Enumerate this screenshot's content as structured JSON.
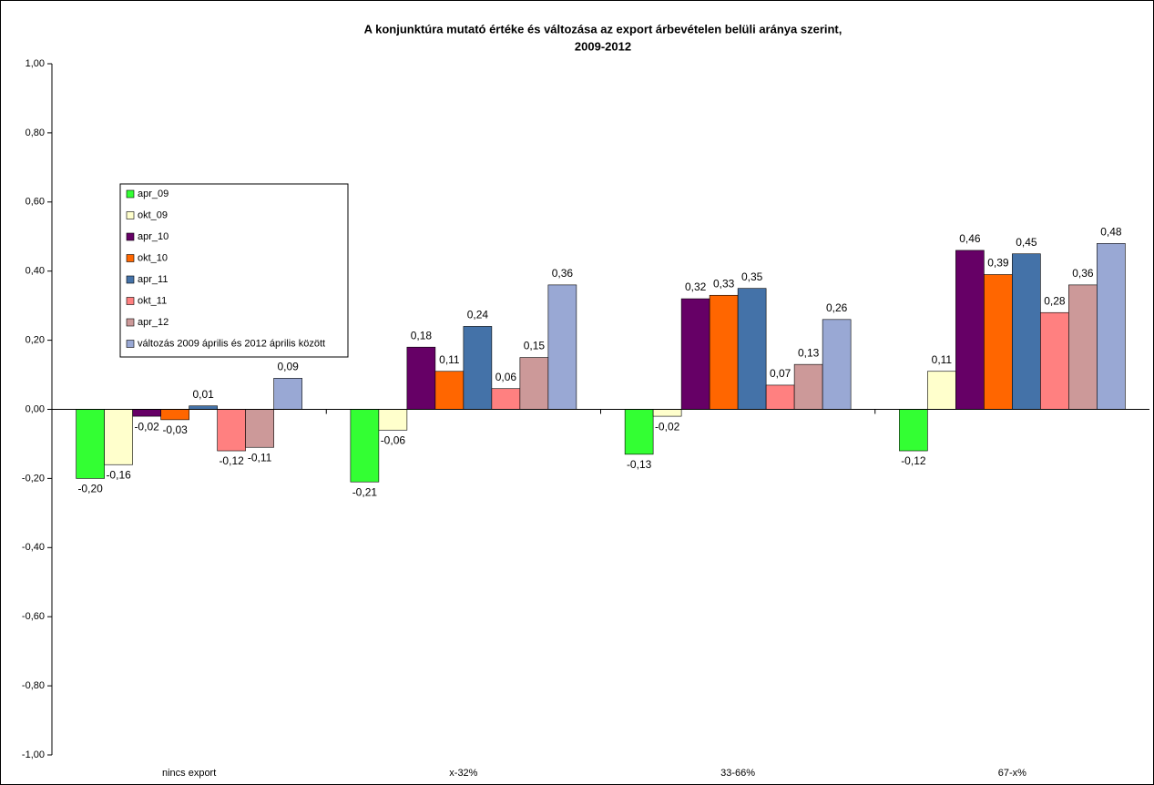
{
  "chart_data": {
    "type": "bar",
    "title": [
      "A konjunktúra mutató értéke és változása az export árbevételen belüli aránya szerint,",
      "2009-2012"
    ],
    "categories": [
      "nincs export",
      "x-32%",
      "33-66%",
      "67-x%"
    ],
    "series": [
      {
        "name": "apr_09",
        "color": "#33ff33",
        "values": [
          -0.2,
          -0.21,
          -0.13,
          -0.12
        ],
        "value_labels": [
          "-0,20",
          "-0,21",
          "-0,13",
          "-0,12"
        ]
      },
      {
        "name": "okt_09",
        "color": "#ffffcc",
        "values": [
          -0.16,
          -0.06,
          -0.02,
          0.11
        ],
        "value_labels": [
          "-0,16",
          "-0,06",
          "-0,02",
          "0,11"
        ]
      },
      {
        "name": "apr_10",
        "color": "#660066",
        "values": [
          -0.02,
          0.18,
          0.32,
          0.46
        ],
        "value_labels": [
          "-0,02",
          "0,18",
          "0,32",
          "0,46"
        ]
      },
      {
        "name": "okt_10",
        "color": "#ff6600",
        "values": [
          -0.03,
          0.11,
          0.33,
          0.39
        ],
        "value_labels": [
          "-0,03",
          "0,11",
          "0,33",
          "0,39"
        ]
      },
      {
        "name": "apr_11",
        "color": "#4472a8",
        "values": [
          0.01,
          0.24,
          0.35,
          0.45
        ],
        "value_labels": [
          "0,01",
          "0,24",
          "0,35",
          "0,45"
        ]
      },
      {
        "name": "okt_11",
        "color": "#ff8080",
        "values": [
          -0.12,
          0.06,
          0.07,
          0.28
        ],
        "value_labels": [
          "-0,12",
          "0,06",
          "0,07",
          "0,28"
        ]
      },
      {
        "name": "apr_12",
        "color": "#cc9999",
        "values": [
          -0.11,
          0.15,
          0.13,
          0.36
        ],
        "value_labels": [
          "-0,11",
          "0,15",
          "0,13",
          "0,36"
        ]
      },
      {
        "name": "változás 2009 április és 2012 április között",
        "color": "#99a8d4",
        "values": [
          0.09,
          0.36,
          0.26,
          0.48
        ],
        "value_labels": [
          "0,09",
          "0,36",
          "0,26",
          "0,48"
        ]
      }
    ],
    "ylim": [
      -1,
      1
    ],
    "yticks": [
      {
        "value": -1,
        "label": "-1,00"
      },
      {
        "value": -0.8,
        "label": "-0,80"
      },
      {
        "value": -0.6,
        "label": "-0,60"
      },
      {
        "value": -0.4,
        "label": "-0,40"
      },
      {
        "value": -0.2,
        "label": "-0,20"
      },
      {
        "value": 0,
        "label": "0,00"
      },
      {
        "value": 0.2,
        "label": "0,20"
      },
      {
        "value": 0.4,
        "label": "0,40"
      },
      {
        "value": 0.6,
        "label": "0,60"
      },
      {
        "value": 0.8,
        "label": "0,80"
      },
      {
        "value": 1,
        "label": "1,00"
      }
    ],
    "grid": false,
    "legend": "upper-left"
  }
}
